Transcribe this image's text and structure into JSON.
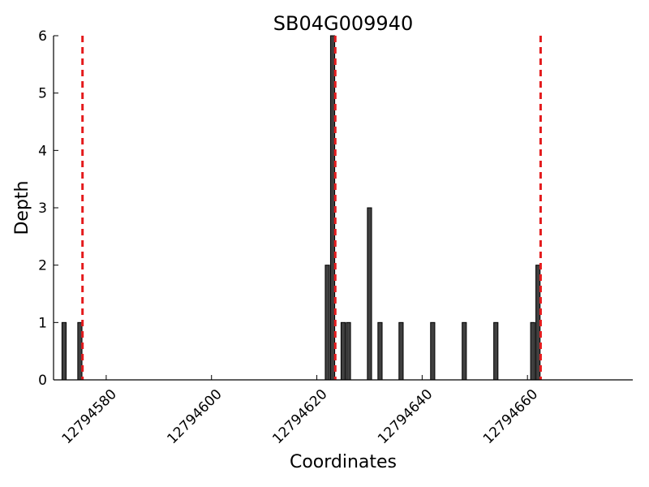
{
  "chart_data": {
    "type": "bar",
    "title": "SB04G009940",
    "xlabel": "Coordinates",
    "ylabel": "Depth",
    "xlim": [
      12794570,
      12794680
    ],
    "ylim": [
      0,
      6
    ],
    "x_ticks": [
      12794580,
      12794600,
      12794620,
      12794640,
      12794660
    ],
    "y_ticks": [
      0,
      1,
      2,
      3,
      4,
      5,
      6
    ],
    "grid": false,
    "bar_color": "#404040",
    "marker_color": "#e41a1c",
    "bars": [
      {
        "x": 12794572,
        "y": 1
      },
      {
        "x": 12794575,
        "y": 1
      },
      {
        "x": 12794622,
        "y": 2
      },
      {
        "x": 12794623,
        "y": 6
      },
      {
        "x": 12794625,
        "y": 1
      },
      {
        "x": 12794626,
        "y": 1
      },
      {
        "x": 12794630,
        "y": 3
      },
      {
        "x": 12794632,
        "y": 1
      },
      {
        "x": 12794636,
        "y": 1
      },
      {
        "x": 12794642,
        "y": 1
      },
      {
        "x": 12794648,
        "y": 1
      },
      {
        "x": 12794654,
        "y": 1
      },
      {
        "x": 12794661,
        "y": 1
      },
      {
        "x": 12794662,
        "y": 2
      }
    ],
    "markers": [
      12794575.5,
      12794623.5,
      12794662.5
    ]
  }
}
